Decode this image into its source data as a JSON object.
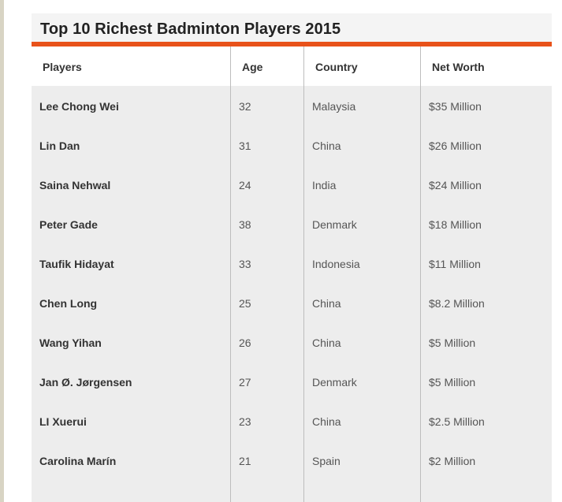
{
  "table": {
    "title": "Top 10 Richest Badminton Players 2015",
    "accent_color": "#e8521a",
    "headers": [
      "Players",
      "Age",
      "Country",
      "Net Worth"
    ],
    "rows": [
      {
        "player": "Lee Chong Wei",
        "age": "32",
        "country": "Malaysia",
        "net_worth": "$35 Million"
      },
      {
        "player": "Lin Dan",
        "age": "31",
        "country": "China",
        "net_worth": "$26 Million"
      },
      {
        "player": "Saina Nehwal",
        "age": "24",
        "country": "India",
        "net_worth": "$24 Million"
      },
      {
        "player": "Peter Gade",
        "age": "38",
        "country": "Denmark",
        "net_worth": "$18 Million"
      },
      {
        "player": "Taufik Hidayat",
        "age": "33",
        "country": "Indonesia",
        "net_worth": "$11 Million"
      },
      {
        "player": "Chen Long",
        "age": "25",
        "country": "China",
        "net_worth": "$8.2 Million"
      },
      {
        "player": "Wang Yihan",
        "age": "26",
        "country": "China",
        "net_worth": "$5 Million"
      },
      {
        "player": "Jan Ø. Jørgensen",
        "age": "27",
        "country": "Denmark",
        "net_worth": "$5 Million"
      },
      {
        "player": "LI Xuerui",
        "age": "23",
        "country": "China",
        "net_worth": "$2.5 Million"
      },
      {
        "player": "Carolina Marín",
        "age": "21",
        "country": "Spain",
        "net_worth": "$2 Million"
      }
    ]
  }
}
